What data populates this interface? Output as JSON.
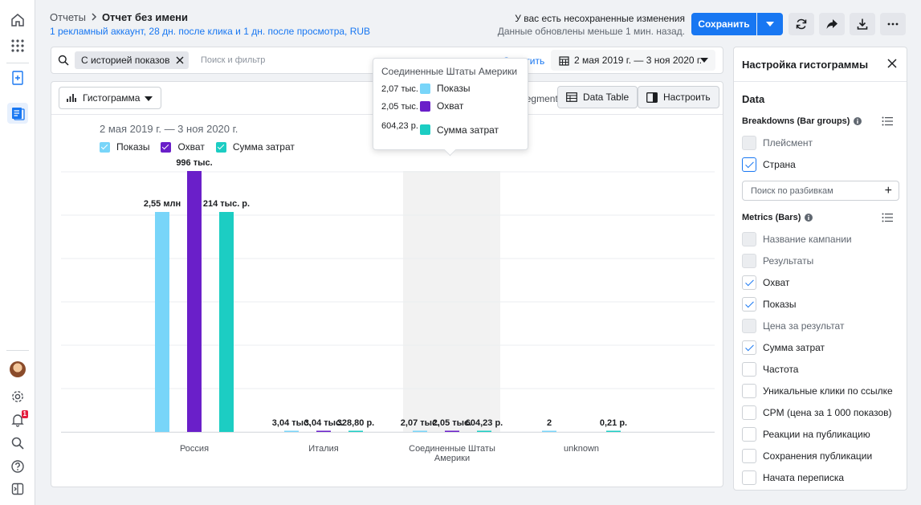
{
  "breadcrumb": {
    "parent": "Отчеты",
    "current": "Отчет без имени"
  },
  "subline": "1 рекламный аккаунт, 28 дн. после клика и 1 дн. после просмотра, RUB",
  "status": {
    "unsaved": "У вас есть несохраненные изменения",
    "updated": "Данные обновлены меньше 1 мин. назад."
  },
  "toolbar": {
    "save_label": "Сохранить"
  },
  "filter": {
    "chip_label": "С историей показов",
    "placeholder": "Поиск и фильтр",
    "clear_label": "Очистить",
    "date_range": "2 мая 2019 г. — 3 ноя 2020 г."
  },
  "panel": {
    "viz_label": "Гистограмма",
    "segments_note": "Showing all 4 breakdown segments",
    "data_table_label": "Data Table",
    "configure_label": "Настроить"
  },
  "colors": {
    "impressions": "#78d5f9",
    "reach": "#6a1fc9",
    "spend": "#1ccdc3",
    "accent": "#1877f2"
  },
  "chart_data": {
    "type": "bar",
    "title": "2 мая 2019 г. — 3 ноя 2020 г.",
    "categories": [
      "Россия",
      "Италия",
      "Соединенные Штаты Америки",
      "unknown"
    ],
    "series": [
      {
        "name": "Показы",
        "values": [
          2550000,
          3040,
          2070,
          2
        ],
        "labels": [
          "2,55 млн",
          "3,04 тыс.",
          "2,07 тыс.",
          "2"
        ]
      },
      {
        "name": "Охват",
        "values": [
          996000,
          3040,
          2050,
          0
        ],
        "labels": [
          "996 тыс.",
          "3,04 тыс.",
          "2,05 тыс.",
          ""
        ]
      },
      {
        "name": "Сумма затрат",
        "values": [
          214000,
          328.8,
          604.23,
          0.21
        ],
        "labels": [
          "214 тыс. р.",
          "328,80 р.",
          "604,23 р.",
          "0,21 р."
        ]
      }
    ],
    "legend_position": "top-left",
    "grid": true,
    "highlighted_category": "Соединенные Штаты Америки"
  },
  "tooltip": {
    "title": "Соединенные Штаты Америки",
    "rows": [
      {
        "value": "2,07 тыс.",
        "name": "Показы"
      },
      {
        "value": "2,05 тыс.",
        "name": "Охват"
      },
      {
        "value": "604,23 р.",
        "name": "Сумма затрат"
      }
    ]
  },
  "sidebar": {
    "title": "Настройка гистограммы",
    "data_heading": "Data",
    "breakdowns_heading": "Breakdowns (Bar groups)",
    "breakdowns": [
      {
        "label": "Плейсмент",
        "state": "disabled"
      },
      {
        "label": "Страна",
        "state": "checked"
      }
    ],
    "breakdown_search": "Поиск по разбивкам",
    "metrics_heading": "Metrics (Bars)",
    "metrics": [
      {
        "label": "Название кампании",
        "state": "disabled"
      },
      {
        "label": "Результаты",
        "state": "disabled"
      },
      {
        "label": "Охват",
        "state": "checked"
      },
      {
        "label": "Показы",
        "state": "checked"
      },
      {
        "label": "Цена за результат",
        "state": "disabled"
      },
      {
        "label": "Сумма затрат",
        "state": "checked"
      },
      {
        "label": "Частота",
        "state": "unchecked"
      },
      {
        "label": "Уникальные клики по ссылке",
        "state": "unchecked"
      },
      {
        "label": "CPM (цена за 1 000 показов)",
        "state": "unchecked"
      },
      {
        "label": "Реакции на публикацию",
        "state": "unchecked"
      },
      {
        "label": "Сохранения публикации",
        "state": "unchecked"
      },
      {
        "label": "Начата переписка",
        "state": "unchecked"
      }
    ]
  },
  "notifications": {
    "count": "1"
  }
}
